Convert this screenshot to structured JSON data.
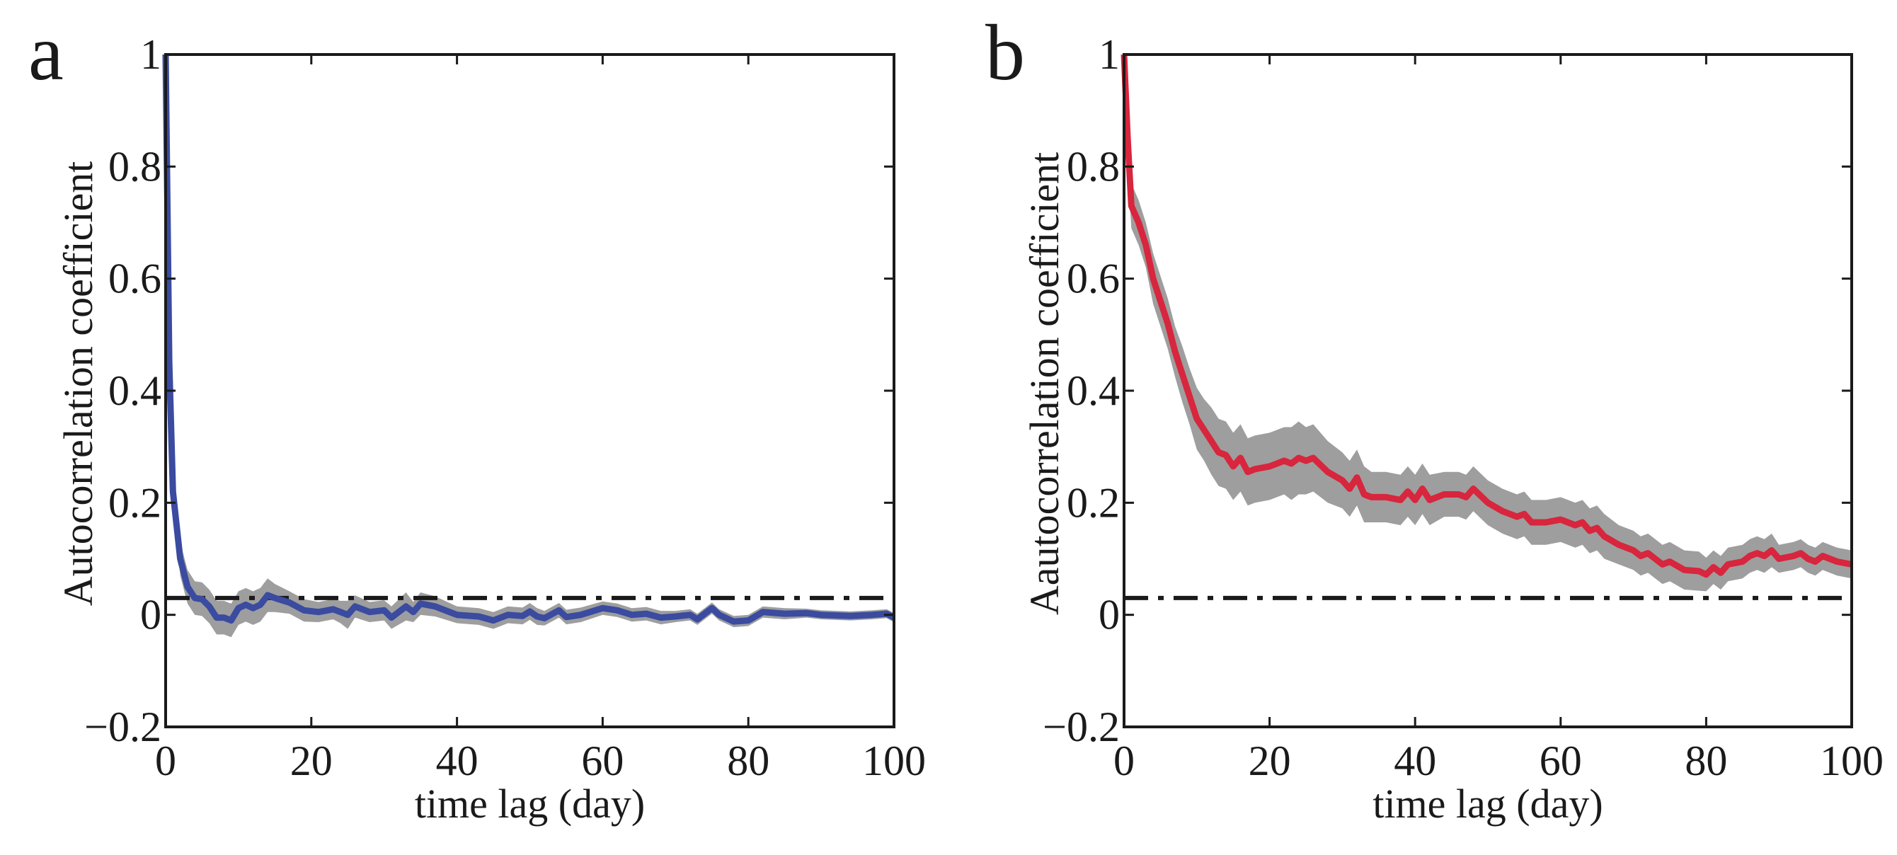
{
  "colors": {
    "band": "#9e9e9e",
    "axis": "#1a1a1a",
    "threshold": "#1a1a1a"
  },
  "chart_data": [
    {
      "type": "line",
      "panel_label": "a",
      "xlabel": "time lag (day)",
      "ylabel": "Autocorrelation coefficient",
      "xlim": [
        0,
        100
      ],
      "ylim": [
        -0.2,
        1
      ],
      "xticks": [
        0,
        20,
        40,
        60,
        80,
        100
      ],
      "xtick_labels": [
        "0",
        "20",
        "40",
        "60",
        "80",
        "100"
      ],
      "yticks": [
        -0.2,
        0,
        0.2,
        0.4,
        0.6,
        0.8,
        1
      ],
      "ytick_labels": [
        "−0.2",
        "0",
        "0.2",
        "0.4",
        "0.6",
        "0.8",
        "1"
      ],
      "grid": false,
      "threshold": 0.03,
      "line_color": "#3a4ba0",
      "series": {
        "x": [
          0,
          0.5,
          1,
          2,
          3,
          4,
          5,
          6,
          7,
          8,
          9,
          10,
          11,
          12,
          13,
          14,
          15,
          17,
          19,
          21,
          23,
          24,
          25,
          26,
          28,
          30,
          31,
          33,
          34,
          35,
          37,
          40,
          43,
          45,
          47,
          49,
          50,
          51,
          52,
          54,
          55,
          57,
          60,
          62,
          64,
          66,
          68,
          70,
          72,
          73,
          75,
          76,
          78,
          80,
          82,
          85,
          88,
          90,
          94,
          97,
          99,
          100
        ],
        "y": [
          1.0,
          0.45,
          0.22,
          0.1,
          0.05,
          0.03,
          0.028,
          0.015,
          -0.005,
          -0.005,
          -0.01,
          0.012,
          0.018,
          0.012,
          0.018,
          0.035,
          0.03,
          0.022,
          0.008,
          0.005,
          0.01,
          0.005,
          0.0,
          0.015,
          0.005,
          0.008,
          -0.005,
          0.015,
          0.005,
          0.02,
          0.015,
          0.0,
          -0.003,
          -0.01,
          0.0,
          -0.002,
          0.006,
          -0.003,
          -0.006,
          0.008,
          -0.004,
          0.0,
          0.012,
          0.008,
          0.0,
          0.002,
          -0.005,
          -0.003,
          0.0,
          -0.008,
          0.012,
          0.0,
          -0.012,
          -0.01,
          0.005,
          0.002,
          0.003,
          0.0,
          -0.002,
          0.0,
          0.002,
          -0.005
        ],
        "band": [
          0.0,
          0.03,
          0.03,
          0.03,
          0.03,
          0.03,
          0.03,
          0.03,
          0.03,
          0.03,
          0.03,
          0.03,
          0.03,
          0.03,
          0.03,
          0.03,
          0.025,
          0.02,
          0.02,
          0.018,
          0.018,
          0.02,
          0.025,
          0.02,
          0.018,
          0.018,
          0.02,
          0.025,
          0.018,
          0.02,
          0.018,
          0.015,
          0.015,
          0.015,
          0.015,
          0.015,
          0.015,
          0.015,
          0.013,
          0.013,
          0.013,
          0.013,
          0.012,
          0.012,
          0.012,
          0.012,
          0.012,
          0.01,
          0.01,
          0.01,
          0.01,
          0.01,
          0.01,
          0.01,
          0.01,
          0.01,
          0.008,
          0.008,
          0.008,
          0.008,
          0.008,
          0.008
        ]
      }
    },
    {
      "type": "line",
      "panel_label": "b",
      "xlabel": "time lag (day)",
      "ylabel": "Aautocorrelation coefficient",
      "xlim": [
        0,
        100
      ],
      "ylim": [
        -0.2,
        1
      ],
      "xticks": [
        0,
        20,
        40,
        60,
        80,
        100
      ],
      "xtick_labels": [
        "0",
        "20",
        "40",
        "60",
        "80",
        "100"
      ],
      "yticks": [
        -0.2,
        0,
        0.2,
        0.4,
        0.6,
        0.8,
        1
      ],
      "ytick_labels": [
        "−0.2",
        "0",
        "0.2",
        "0.4",
        "0.6",
        "0.8",
        "1"
      ],
      "grid": false,
      "threshold": 0.03,
      "line_color": "#d7263d",
      "series": {
        "x": [
          0,
          0.5,
          1,
          2,
          3,
          4,
          5,
          6,
          7,
          8,
          9,
          10,
          11,
          12,
          13,
          14,
          15,
          16,
          17,
          18,
          20,
          22,
          23,
          24,
          25,
          26,
          28,
          30,
          31,
          32,
          33,
          34,
          36,
          38,
          39,
          40,
          41,
          42,
          44,
          46,
          47,
          48,
          50,
          52,
          54,
          55,
          56,
          58,
          60,
          62,
          63,
          64,
          65,
          66,
          68,
          70,
          71,
          72,
          73,
          74,
          75,
          77,
          79,
          80,
          81,
          82,
          83,
          85,
          86,
          87,
          88,
          89,
          90,
          92,
          93,
          94,
          95,
          96,
          98,
          100
        ],
        "y": [
          1.0,
          0.85,
          0.73,
          0.7,
          0.66,
          0.6,
          0.56,
          0.52,
          0.47,
          0.43,
          0.39,
          0.35,
          0.33,
          0.31,
          0.29,
          0.285,
          0.265,
          0.28,
          0.255,
          0.26,
          0.265,
          0.275,
          0.27,
          0.28,
          0.275,
          0.28,
          0.255,
          0.24,
          0.225,
          0.245,
          0.215,
          0.21,
          0.21,
          0.205,
          0.22,
          0.205,
          0.225,
          0.205,
          0.215,
          0.215,
          0.21,
          0.225,
          0.2,
          0.185,
          0.175,
          0.18,
          0.165,
          0.165,
          0.17,
          0.16,
          0.165,
          0.15,
          0.155,
          0.14,
          0.125,
          0.115,
          0.105,
          0.11,
          0.1,
          0.09,
          0.095,
          0.08,
          0.078,
          0.072,
          0.085,
          0.075,
          0.09,
          0.095,
          0.105,
          0.11,
          0.105,
          0.115,
          0.1,
          0.105,
          0.11,
          0.1,
          0.095,
          0.105,
          0.095,
          0.09
        ],
        "band": [
          0.0,
          0.05,
          0.04,
          0.04,
          0.04,
          0.045,
          0.045,
          0.045,
          0.045,
          0.05,
          0.05,
          0.055,
          0.055,
          0.06,
          0.06,
          0.06,
          0.06,
          0.06,
          0.06,
          0.06,
          0.06,
          0.06,
          0.065,
          0.065,
          0.06,
          0.06,
          0.055,
          0.05,
          0.05,
          0.05,
          0.05,
          0.045,
          0.045,
          0.045,
          0.045,
          0.045,
          0.045,
          0.045,
          0.04,
          0.04,
          0.04,
          0.04,
          0.04,
          0.04,
          0.04,
          0.04,
          0.04,
          0.04,
          0.04,
          0.04,
          0.04,
          0.04,
          0.04,
          0.04,
          0.035,
          0.035,
          0.035,
          0.035,
          0.035,
          0.035,
          0.035,
          0.035,
          0.035,
          0.03,
          0.03,
          0.03,
          0.03,
          0.03,
          0.03,
          0.03,
          0.03,
          0.03,
          0.025,
          0.025,
          0.025,
          0.025,
          0.025,
          0.025,
          0.025,
          0.025
        ]
      }
    }
  ]
}
